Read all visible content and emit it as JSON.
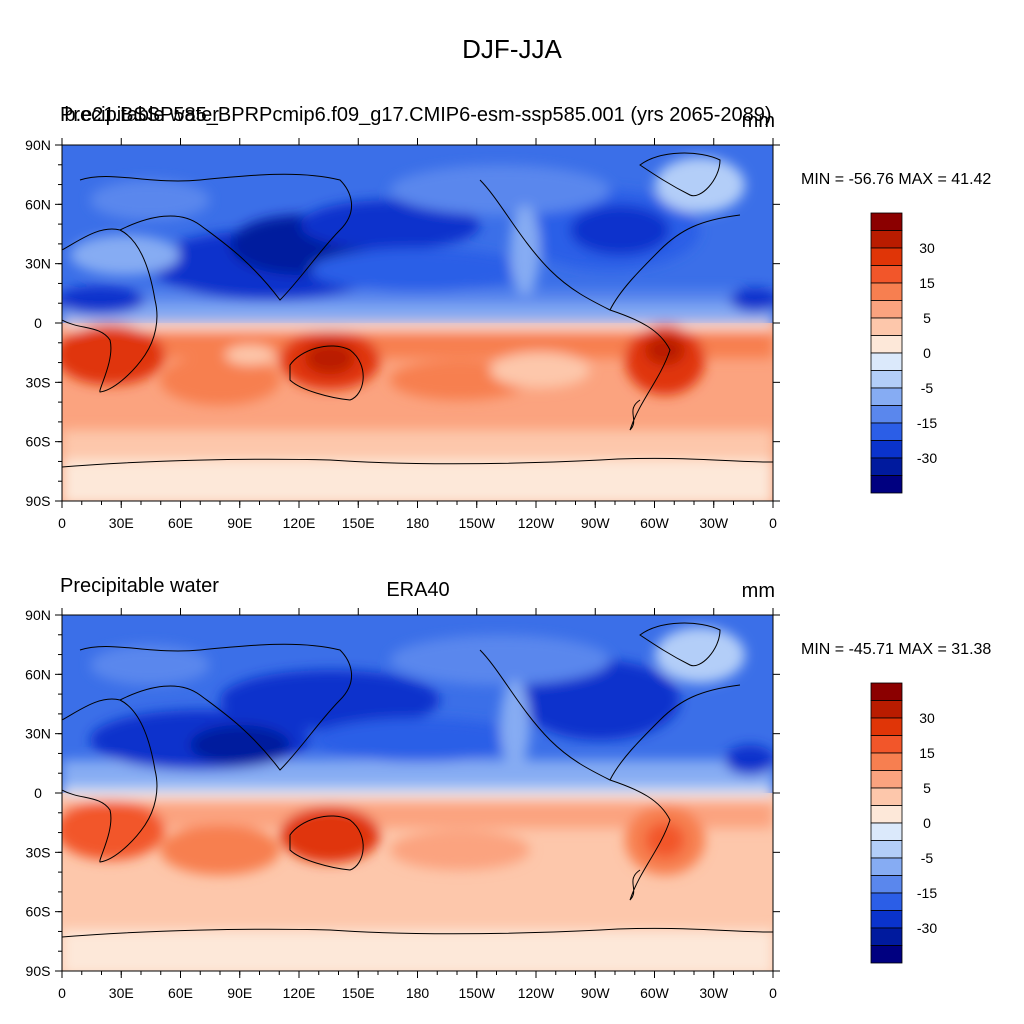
{
  "main_title": "DJF-JJA",
  "panels": [
    {
      "left_title": "Precipitable water",
      "center_title": "b.e21.BSSP585_BPRPcmip6.f09_g17.CMIP6-esm-ssp585.001 (yrs 2065-2089)",
      "units": "mm",
      "min_max": "MIN = -56.76 MAX =  41.42"
    },
    {
      "left_title": "Precipitable water",
      "center_title": "ERA40",
      "units": "mm",
      "min_max": "MIN = -45.71 MAX =  31.38"
    }
  ],
  "lon_ticks": [
    "0",
    "30E",
    "60E",
    "90E",
    "120E",
    "150E",
    "180",
    "150W",
    "120W",
    "90W",
    "60W",
    "30W",
    "0"
  ],
  "lat_ticks": [
    "90N",
    "60N",
    "30N",
    "0",
    "30S",
    "60S",
    "90S"
  ],
  "colorbar": {
    "colors": [
      "#8b0000",
      "#b91c00",
      "#e03507",
      "#f2562a",
      "#f77f50",
      "#fba37f",
      "#fdc7ab",
      "#fde8d9",
      "#dbe9fb",
      "#b3cef8",
      "#86acf3",
      "#5a87ed",
      "#2b5ee7",
      "#0a33cc",
      "#001a9e",
      "#000080"
    ],
    "labels": [
      "30",
      "15",
      "5",
      "0",
      "-5",
      "-15",
      "-30"
    ]
  }
}
